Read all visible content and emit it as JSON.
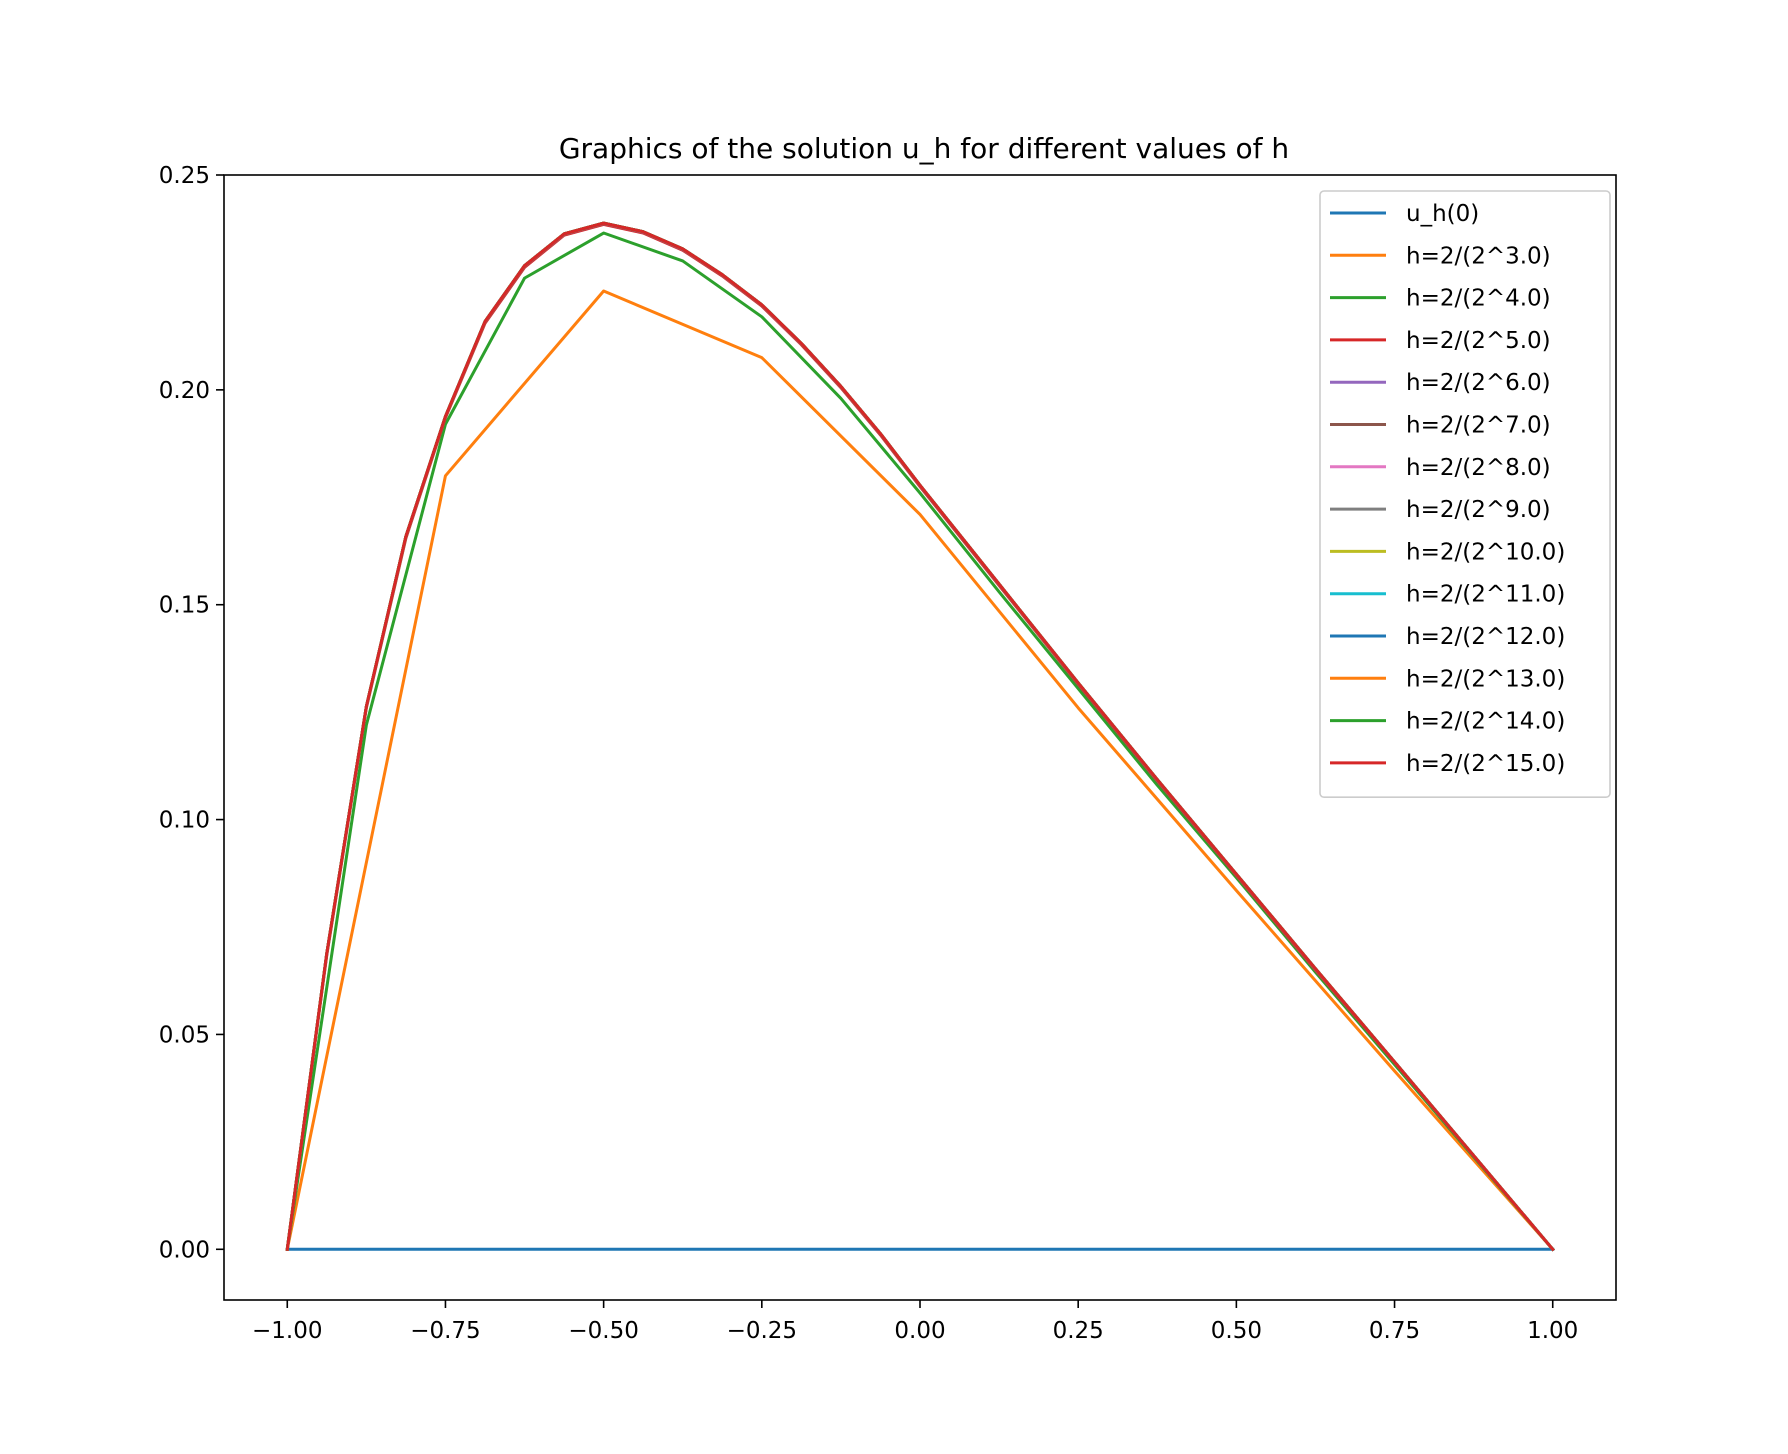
{
  "chart_data": {
    "type": "line",
    "title": "Graphics of the solution u_h for different values of h",
    "xlabel": "",
    "ylabel": "",
    "xlim": [
      -1.1,
      1.1
    ],
    "ylim": [
      -0.0118,
      0.25
    ],
    "xticks": [
      -1.0,
      -0.75,
      -0.5,
      -0.25,
      0.0,
      0.25,
      0.5,
      0.75,
      1.0
    ],
    "xtick_labels": [
      "−1.00",
      "−0.75",
      "−0.50",
      "−0.25",
      "0.00",
      "0.25",
      "0.50",
      "0.75",
      "1.00"
    ],
    "yticks": [
      0.0,
      0.05,
      0.1,
      0.15,
      0.2,
      0.25
    ],
    "ytick_labels": [
      "0.00",
      "0.05",
      "0.10",
      "0.15",
      "0.20",
      "0.25"
    ],
    "grid": false,
    "legend_position": "top-right",
    "series": [
      {
        "name": "u_h(0)",
        "color": "#1f77b4",
        "x": [
          -1.0,
          1.0
        ],
        "y": [
          0.0,
          0.0
        ]
      },
      {
        "name": "h=2/(2^3.0)",
        "color": "#ff7f0e",
        "x": [
          -1.0,
          -0.75,
          -0.5,
          -0.25,
          0.0,
          0.25,
          0.5,
          0.75,
          1.0
        ],
        "y": [
          0.0,
          0.18,
          0.223,
          0.2075,
          0.171,
          0.126,
          0.0835,
          0.0415,
          0.0
        ]
      },
      {
        "name": "h=2/(2^4.0)",
        "color": "#2ca02c",
        "x": [
          -1.0,
          -0.875,
          -0.75,
          -0.625,
          -0.5,
          -0.375,
          -0.25,
          -0.125,
          0.0,
          0.125,
          0.25,
          0.375,
          0.5,
          0.625,
          0.75,
          0.875,
          1.0
        ],
        "y": [
          0.0,
          0.122,
          0.192,
          0.226,
          0.2365,
          0.23,
          0.217,
          0.198,
          0.176,
          0.153,
          0.1305,
          0.108,
          0.0865,
          0.0645,
          0.043,
          0.0215,
          0.0
        ]
      },
      {
        "name": "h=2/(2^5.0)",
        "color": "#d62728",
        "x": [
          -1.0,
          -0.9375,
          -0.875,
          -0.8125,
          -0.75,
          -0.6875,
          -0.625,
          -0.5625,
          -0.5,
          -0.4375,
          -0.375,
          -0.3125,
          -0.25,
          -0.1875,
          -0.125,
          -0.0625,
          0.0,
          0.125,
          0.25,
          0.375,
          0.5,
          0.625,
          0.75,
          0.875,
          1.0
        ],
        "y": [
          0.0,
          0.0685,
          0.126,
          0.1655,
          0.1935,
          0.2155,
          0.2285,
          0.236,
          0.2385,
          0.2365,
          0.2325,
          0.2265,
          0.2195,
          0.2105,
          0.2005,
          0.1895,
          0.1775,
          0.1545,
          0.1315,
          0.109,
          0.087,
          0.065,
          0.0435,
          0.0217,
          0.0
        ]
      },
      {
        "name": "h=2/(2^6.0)",
        "color": "#9467bd",
        "x": [
          -1.0,
          -0.9375,
          -0.875,
          -0.8125,
          -0.75,
          -0.6875,
          -0.625,
          -0.5625,
          -0.5,
          -0.4375,
          -0.375,
          -0.3125,
          -0.25,
          -0.1875,
          -0.125,
          -0.0625,
          0.0,
          0.125,
          0.25,
          0.375,
          0.5,
          0.625,
          0.75,
          0.875,
          1.0
        ],
        "y": [
          0.0,
          0.0688,
          0.1262,
          0.1658,
          0.1937,
          0.2158,
          0.2288,
          0.2362,
          0.2387,
          0.2367,
          0.2327,
          0.2267,
          0.2197,
          0.2107,
          0.2007,
          0.1897,
          0.1777,
          0.1547,
          0.1317,
          0.1092,
          0.0872,
          0.0652,
          0.0436,
          0.0218,
          0.0
        ]
      },
      {
        "name": "h=2/(2^7.0)",
        "color": "#8c564b",
        "x": [
          -1.0,
          -0.9375,
          -0.875,
          -0.8125,
          -0.75,
          -0.6875,
          -0.625,
          -0.5625,
          -0.5,
          -0.4375,
          -0.375,
          -0.3125,
          -0.25,
          -0.1875,
          -0.125,
          -0.0625,
          0.0,
          0.125,
          0.25,
          0.375,
          0.5,
          0.625,
          0.75,
          0.875,
          1.0
        ],
        "y": [
          0.0,
          0.0689,
          0.1263,
          0.1659,
          0.1938,
          0.2159,
          0.2289,
          0.2363,
          0.2388,
          0.2368,
          0.2328,
          0.2268,
          0.2198,
          0.2108,
          0.2008,
          0.1898,
          0.1778,
          0.1548,
          0.1318,
          0.1093,
          0.0873,
          0.0653,
          0.0436,
          0.0218,
          0.0
        ]
      },
      {
        "name": "h=2/(2^8.0)",
        "color": "#e377c2",
        "x": [
          -1.0,
          -0.9375,
          -0.875,
          -0.8125,
          -0.75,
          -0.6875,
          -0.625,
          -0.5625,
          -0.5,
          -0.4375,
          -0.375,
          -0.3125,
          -0.25,
          -0.1875,
          -0.125,
          -0.0625,
          0.0,
          0.125,
          0.25,
          0.375,
          0.5,
          0.625,
          0.75,
          0.875,
          1.0
        ],
        "y": [
          0.0,
          0.0689,
          0.1263,
          0.1659,
          0.1938,
          0.2159,
          0.2289,
          0.2363,
          0.2388,
          0.2368,
          0.2328,
          0.2268,
          0.2198,
          0.2108,
          0.2008,
          0.1898,
          0.1778,
          0.1548,
          0.1318,
          0.1093,
          0.0873,
          0.0653,
          0.0436,
          0.0218,
          0.0
        ]
      },
      {
        "name": "h=2/(2^9.0)",
        "color": "#7f7f7f",
        "x": [
          -1.0,
          -0.9375,
          -0.875,
          -0.8125,
          -0.75,
          -0.6875,
          -0.625,
          -0.5625,
          -0.5,
          -0.4375,
          -0.375,
          -0.3125,
          -0.25,
          -0.1875,
          -0.125,
          -0.0625,
          0.0,
          0.125,
          0.25,
          0.375,
          0.5,
          0.625,
          0.75,
          0.875,
          1.0
        ],
        "y": [
          0.0,
          0.0689,
          0.1263,
          0.1659,
          0.1938,
          0.2159,
          0.2289,
          0.2363,
          0.2388,
          0.2368,
          0.2328,
          0.2268,
          0.2198,
          0.2108,
          0.2008,
          0.1898,
          0.1778,
          0.1548,
          0.1318,
          0.1093,
          0.0873,
          0.0653,
          0.0436,
          0.0218,
          0.0
        ]
      },
      {
        "name": "h=2/(2^10.0)",
        "color": "#bcbd22",
        "x": [
          -1.0,
          -0.9375,
          -0.875,
          -0.8125,
          -0.75,
          -0.6875,
          -0.625,
          -0.5625,
          -0.5,
          -0.4375,
          -0.375,
          -0.3125,
          -0.25,
          -0.1875,
          -0.125,
          -0.0625,
          0.0,
          0.125,
          0.25,
          0.375,
          0.5,
          0.625,
          0.75,
          0.875,
          1.0
        ],
        "y": [
          0.0,
          0.0689,
          0.1263,
          0.1659,
          0.1938,
          0.2159,
          0.2289,
          0.2363,
          0.2388,
          0.2368,
          0.2328,
          0.2268,
          0.2198,
          0.2108,
          0.2008,
          0.1898,
          0.1778,
          0.1548,
          0.1318,
          0.1093,
          0.0873,
          0.0653,
          0.0436,
          0.0218,
          0.0
        ]
      },
      {
        "name": "h=2/(2^11.0)",
        "color": "#17becf",
        "x": [
          -1.0,
          -0.9375,
          -0.875,
          -0.8125,
          -0.75,
          -0.6875,
          -0.625,
          -0.5625,
          -0.5,
          -0.4375,
          -0.375,
          -0.3125,
          -0.25,
          -0.1875,
          -0.125,
          -0.0625,
          0.0,
          0.125,
          0.25,
          0.375,
          0.5,
          0.625,
          0.75,
          0.875,
          1.0
        ],
        "y": [
          0.0,
          0.0689,
          0.1263,
          0.1659,
          0.1938,
          0.2159,
          0.2289,
          0.2363,
          0.2388,
          0.2368,
          0.2328,
          0.2268,
          0.2198,
          0.2108,
          0.2008,
          0.1898,
          0.1778,
          0.1548,
          0.1318,
          0.1093,
          0.0873,
          0.0653,
          0.0436,
          0.0218,
          0.0
        ]
      },
      {
        "name": "h=2/(2^12.0)",
        "color": "#1f77b4",
        "x": [
          -1.0,
          -0.9375,
          -0.875,
          -0.8125,
          -0.75,
          -0.6875,
          -0.625,
          -0.5625,
          -0.5,
          -0.4375,
          -0.375,
          -0.3125,
          -0.25,
          -0.1875,
          -0.125,
          -0.0625,
          0.0,
          0.125,
          0.25,
          0.375,
          0.5,
          0.625,
          0.75,
          0.875,
          1.0
        ],
        "y": [
          0.0,
          0.0689,
          0.1263,
          0.1659,
          0.1938,
          0.2159,
          0.2289,
          0.2363,
          0.2388,
          0.2368,
          0.2328,
          0.2268,
          0.2198,
          0.2108,
          0.2008,
          0.1898,
          0.1778,
          0.1548,
          0.1318,
          0.1093,
          0.0873,
          0.0653,
          0.0436,
          0.0218,
          0.0
        ]
      },
      {
        "name": "h=2/(2^13.0)",
        "color": "#ff7f0e",
        "x": [
          -1.0,
          -0.9375,
          -0.875,
          -0.8125,
          -0.75,
          -0.6875,
          -0.625,
          -0.5625,
          -0.5,
          -0.4375,
          -0.375,
          -0.3125,
          -0.25,
          -0.1875,
          -0.125,
          -0.0625,
          0.0,
          0.125,
          0.25,
          0.375,
          0.5,
          0.625,
          0.75,
          0.875,
          1.0
        ],
        "y": [
          0.0,
          0.0689,
          0.1263,
          0.1659,
          0.1938,
          0.2159,
          0.2289,
          0.2363,
          0.2388,
          0.2368,
          0.2328,
          0.2268,
          0.2198,
          0.2108,
          0.2008,
          0.1898,
          0.1778,
          0.1548,
          0.1318,
          0.1093,
          0.0873,
          0.0653,
          0.0436,
          0.0218,
          0.0
        ]
      },
      {
        "name": "h=2/(2^14.0)",
        "color": "#2ca02c",
        "x": [
          -1.0,
          -0.9375,
          -0.875,
          -0.8125,
          -0.75,
          -0.6875,
          -0.625,
          -0.5625,
          -0.5,
          -0.4375,
          -0.375,
          -0.3125,
          -0.25,
          -0.1875,
          -0.125,
          -0.0625,
          0.0,
          0.125,
          0.25,
          0.375,
          0.5,
          0.625,
          0.75,
          0.875,
          1.0
        ],
        "y": [
          0.0,
          0.0689,
          0.1263,
          0.1659,
          0.1938,
          0.2159,
          0.2289,
          0.2363,
          0.2388,
          0.2368,
          0.2328,
          0.2268,
          0.2198,
          0.2108,
          0.2008,
          0.1898,
          0.1778,
          0.1548,
          0.1318,
          0.1093,
          0.0873,
          0.0653,
          0.0436,
          0.0218,
          0.0
        ]
      },
      {
        "name": "h=2/(2^15.0)",
        "color": "#d62728",
        "x": [
          -1.0,
          -0.9375,
          -0.875,
          -0.8125,
          -0.75,
          -0.6875,
          -0.625,
          -0.5625,
          -0.5,
          -0.4375,
          -0.375,
          -0.3125,
          -0.25,
          -0.1875,
          -0.125,
          -0.0625,
          0.0,
          0.125,
          0.25,
          0.375,
          0.5,
          0.625,
          0.75,
          0.875,
          1.0
        ],
        "y": [
          0.0,
          0.0689,
          0.1263,
          0.1659,
          0.1938,
          0.2159,
          0.2289,
          0.2363,
          0.2388,
          0.2368,
          0.2328,
          0.2268,
          0.2198,
          0.2108,
          0.2008,
          0.1898,
          0.1778,
          0.1548,
          0.1318,
          0.1093,
          0.0873,
          0.0653,
          0.0436,
          0.0218,
          0.0
        ]
      }
    ]
  }
}
